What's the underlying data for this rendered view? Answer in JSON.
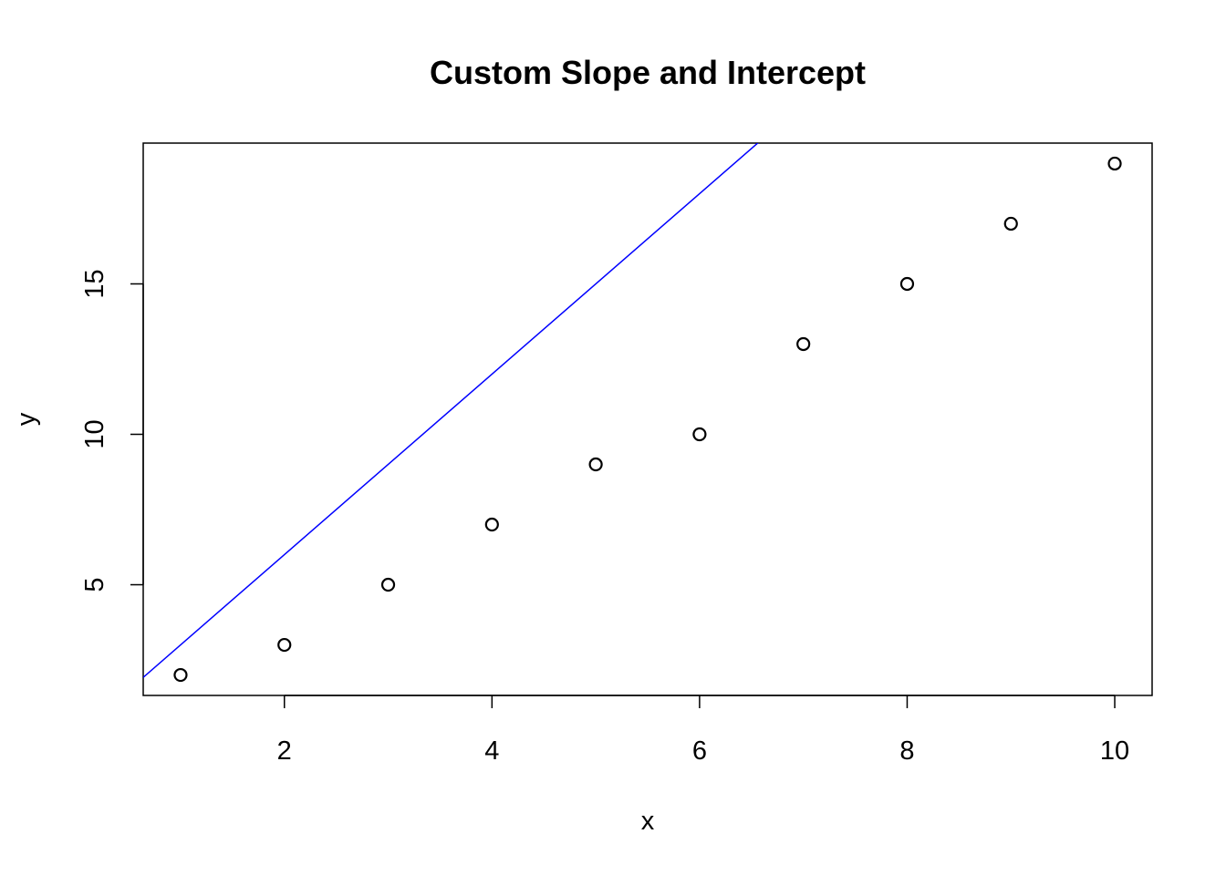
{
  "chart_data": {
    "type": "scatter",
    "title": "Custom Slope and Intercept",
    "xlabel": "x",
    "ylabel": "y",
    "xlim": [
      0.64,
      10.36
    ],
    "ylim": [
      1.32,
      19.68
    ],
    "x_ticks": [
      2,
      4,
      6,
      8,
      10
    ],
    "y_ticks": [
      5,
      10,
      15
    ],
    "points": {
      "x": [
        1,
        2,
        3,
        4,
        5,
        6,
        7,
        8,
        9,
        10
      ],
      "y": [
        2,
        3,
        5,
        7,
        9,
        10,
        13,
        15,
        17,
        19
      ]
    },
    "abline": {
      "intercept": 0,
      "slope": 3,
      "color": "#0000FF"
    },
    "point_color": "#000000",
    "grid": false,
    "legend": "none"
  }
}
